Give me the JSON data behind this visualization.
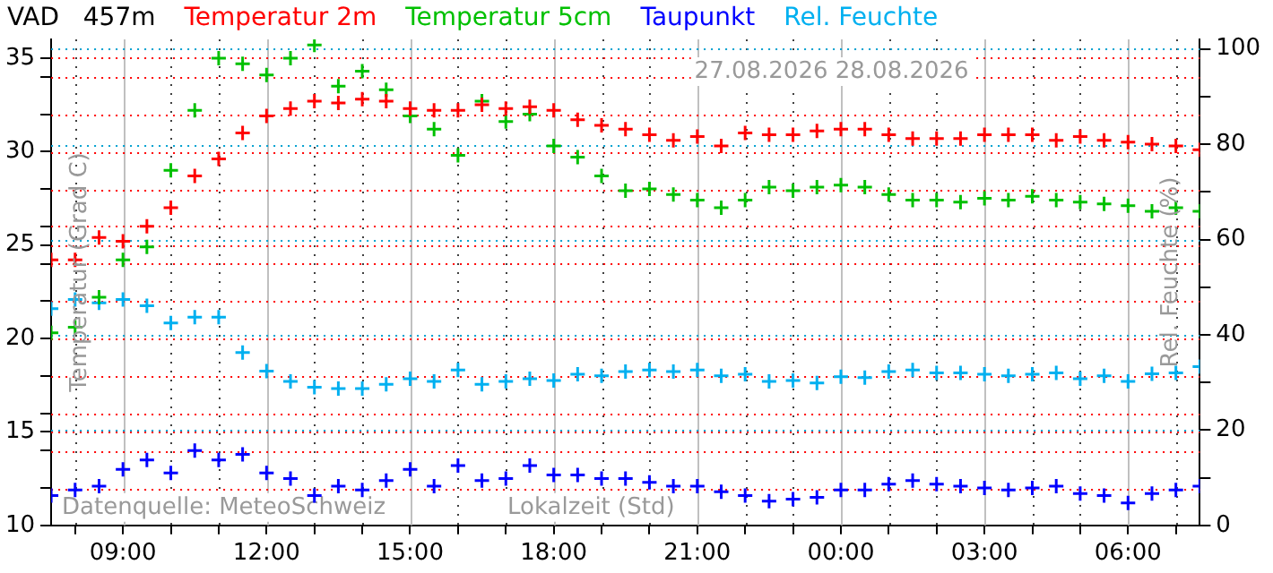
{
  "chart_data": {
    "type": "scatter",
    "title": "VAD   457m",
    "xlabel": "Lokalzeit (Std)",
    "ylabel": "Temperatur (Grad C)",
    "y2label": "Rel. Feuchte (%)",
    "x": [
      "2026-08-27T07:30",
      "2026-08-27T08:00",
      "2026-08-27T08:30",
      "2026-08-27T09:00",
      "2026-08-27T09:30",
      "2026-08-27T10:00",
      "2026-08-27T10:30",
      "2026-08-27T11:00",
      "2026-08-27T11:30",
      "2026-08-27T12:00",
      "2026-08-27T12:30",
      "2026-08-27T13:00",
      "2026-08-27T13:30",
      "2026-08-27T14:00",
      "2026-08-27T14:30",
      "2026-08-27T15:00",
      "2026-08-27T15:30",
      "2026-08-27T16:00",
      "2026-08-27T16:30",
      "2026-08-27T17:00",
      "2026-08-27T17:30",
      "2026-08-27T18:00",
      "2026-08-27T18:30",
      "2026-08-27T19:00",
      "2026-08-27T19:30",
      "2026-08-27T20:00",
      "2026-08-27T20:30",
      "2026-08-27T21:00",
      "2026-08-27T21:30",
      "2026-08-27T22:00",
      "2026-08-27T22:30",
      "2026-08-27T23:00",
      "2026-08-27T23:30",
      "2026-08-28T00:00",
      "2026-08-28T00:30",
      "2026-08-28T01:00",
      "2026-08-28T01:30",
      "2026-08-28T02:00",
      "2026-08-28T02:30",
      "2026-08-28T03:00",
      "2026-08-28T03:30",
      "2026-08-28T04:00",
      "2026-08-28T04:30",
      "2026-08-28T05:00",
      "2026-08-28T05:30",
      "2026-08-28T06:00",
      "2026-08-28T06:30",
      "2026-08-28T07:00",
      "2026-08-28T07:30"
    ],
    "series": [
      {
        "name": "Temperatur 2m",
        "color": "#ff0000",
        "values": [
          24.2,
          24.2,
          25.4,
          25.2,
          26.0,
          27.0,
          28.7,
          29.6,
          31.0,
          31.9,
          32.3,
          32.7,
          32.6,
          32.8,
          32.7,
          32.3,
          32.2,
          32.2,
          32.5,
          32.3,
          32.4,
          32.2,
          31.7,
          31.4,
          31.2,
          30.9,
          30.6,
          30.8,
          30.3,
          31.0,
          30.9,
          30.9,
          31.1,
          31.2,
          31.2,
          30.9,
          30.7,
          30.7,
          30.7,
          30.9,
          30.9,
          30.9,
          30.6,
          30.8,
          30.6,
          30.5,
          30.4,
          30.3,
          30.1
        ]
      },
      {
        "name": "Temperatur 5cm",
        "color": "#00c000",
        "values": [
          20.3,
          20.6,
          22.2,
          24.2,
          24.9,
          29.0,
          32.2,
          35.0,
          34.7,
          34.1,
          35.0,
          35.7,
          33.5,
          34.3,
          33.3,
          31.9,
          31.2,
          29.8,
          32.7,
          31.6,
          32.0,
          30.3,
          29.7,
          28.7,
          27.9,
          28.0,
          27.7,
          27.4,
          27.0,
          27.4,
          28.1,
          27.9,
          28.1,
          28.2,
          28.1,
          27.7,
          27.4,
          27.4,
          27.3,
          27.5,
          27.4,
          27.6,
          27.4,
          27.3,
          27.2,
          27.1,
          26.8,
          27.0,
          26.8
        ]
      },
      {
        "name": "Taupunkt",
        "color": "#0000ff",
        "values": [
          11.6,
          11.9,
          12.1,
          13.0,
          13.5,
          12.8,
          14.0,
          13.5,
          13.8,
          12.8,
          12.5,
          11.6,
          12.1,
          11.9,
          12.4,
          13.0,
          12.1,
          13.2,
          12.4,
          12.5,
          13.2,
          12.7,
          12.7,
          12.5,
          12.5,
          12.3,
          12.1,
          12.1,
          11.8,
          11.6,
          11.3,
          11.4,
          11.5,
          11.9,
          11.9,
          12.2,
          12.4,
          12.2,
          12.1,
          12.0,
          11.9,
          12.0,
          12.1,
          11.7,
          11.6,
          11.2,
          11.7,
          11.9,
          12.1
        ]
      },
      {
        "name": "Rel. Feuchte",
        "color": "#00b0f0",
        "axis": "y2",
        "values": [
          45.5,
          47.4,
          46.7,
          47.4,
          46.1,
          42.5,
          43.7,
          43.7,
          36.3,
          32.4,
          30.2,
          29.0,
          28.7,
          28.7,
          29.6,
          30.8,
          30.2,
          32.6,
          29.6,
          30.2,
          30.8,
          30.4,
          31.7,
          31.4,
          32.3,
          32.6,
          32.3,
          32.6,
          31.4,
          31.7,
          30.2,
          30.4,
          29.9,
          31.2,
          31.0,
          32.3,
          32.6,
          32.0,
          32.0,
          31.7,
          31.4,
          31.7,
          32.0,
          30.8,
          31.4,
          30.2,
          31.8,
          32.0,
          33.3
        ]
      }
    ],
    "xlim": [
      "2026-08-27T07:30",
      "2026-08-28T07:30"
    ],
    "xticks": [
      {
        "value": "2026-08-27T08:00",
        "label": null
      },
      {
        "value": "2026-08-27T09:00",
        "label": "09:00"
      },
      {
        "value": "2026-08-27T10:00",
        "label": null
      },
      {
        "value": "2026-08-27T11:00",
        "label": null
      },
      {
        "value": "2026-08-27T12:00",
        "label": "12:00"
      },
      {
        "value": "2026-08-27T13:00",
        "label": null
      },
      {
        "value": "2026-08-27T14:00",
        "label": null
      },
      {
        "value": "2026-08-27T15:00",
        "label": "15:00"
      },
      {
        "value": "2026-08-27T16:00",
        "label": null
      },
      {
        "value": "2026-08-27T17:00",
        "label": null
      },
      {
        "value": "2026-08-27T18:00",
        "label": "18:00"
      },
      {
        "value": "2026-08-27T19:00",
        "label": null
      },
      {
        "value": "2026-08-27T20:00",
        "label": null
      },
      {
        "value": "2026-08-27T21:00",
        "label": "21:00"
      },
      {
        "value": "2026-08-27T22:00",
        "label": null
      },
      {
        "value": "2026-08-27T23:00",
        "label": null
      },
      {
        "value": "2026-08-28T00:00",
        "label": "00:00"
      },
      {
        "value": "2026-08-28T01:00",
        "label": null
      },
      {
        "value": "2026-08-28T02:00",
        "label": null
      },
      {
        "value": "2026-08-28T03:00",
        "label": "03:00"
      },
      {
        "value": "2026-08-28T04:00",
        "label": null
      },
      {
        "value": "2026-08-28T05:00",
        "label": null
      },
      {
        "value": "2026-08-28T06:00",
        "label": "06:00"
      },
      {
        "value": "2026-08-28T07:00",
        "label": null
      }
    ],
    "ylim": [
      10,
      36
    ],
    "yticks": [
      10,
      {
        "value": 12,
        "label": null
      },
      {
        "value": 14,
        "label": null
      },
      15,
      {
        "value": 16,
        "label": null
      },
      {
        "value": 18,
        "label": null
      },
      20,
      {
        "value": 22,
        "label": null
      },
      {
        "value": 24,
        "label": null
      },
      25,
      {
        "value": 26,
        "label": null
      },
      {
        "value": 28,
        "label": null
      },
      30,
      {
        "value": 32,
        "label": null
      },
      {
        "value": 34,
        "label": null
      },
      35
    ],
    "y2lim": [
      0,
      102
    ],
    "y2ticks": [
      0,
      {
        "value": 10,
        "label": null
      },
      20,
      {
        "value": 30,
        "label": null
      },
      40,
      {
        "value": 50,
        "label": null
      },
      60,
      {
        "value": 70,
        "label": null
      },
      80,
      {
        "value": 90,
        "label": null
      },
      100
    ],
    "annotations": [
      "27.08.2026 28.08.2026",
      "Datenquelle: MeteoSchweiz"
    ],
    "grid": true,
    "legend": "top",
    "marker": "cross"
  }
}
